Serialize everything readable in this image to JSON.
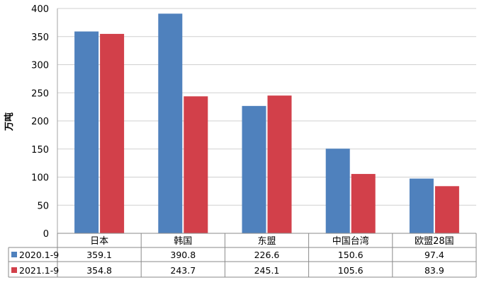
{
  "chart_data": {
    "type": "bar",
    "ylabel": "万吨",
    "ylim": [
      0,
      400
    ],
    "yticks": [
      0,
      50,
      100,
      150,
      200,
      250,
      300,
      350,
      400
    ],
    "grid": true,
    "legend": "data-table-below",
    "categories": [
      "日本",
      "韩国",
      "东盟",
      "中国台湾",
      "欧盟28国"
    ],
    "series": [
      {
        "name": "2020.1-9",
        "color": "#4f81bd",
        "values": [
          359.1,
          390.8,
          226.6,
          150.6,
          97.4
        ]
      },
      {
        "name": "2021.1-9",
        "color": "#d2404a",
        "values": [
          354.8,
          243.7,
          245.1,
          105.6,
          83.9
        ]
      }
    ],
    "table_values": [
      [
        "359.1",
        "390.8",
        "226.6",
        "150.6",
        "97.4"
      ],
      [
        "354.8",
        "243.7",
        "245.1",
        "105.6",
        "83.9"
      ]
    ]
  }
}
